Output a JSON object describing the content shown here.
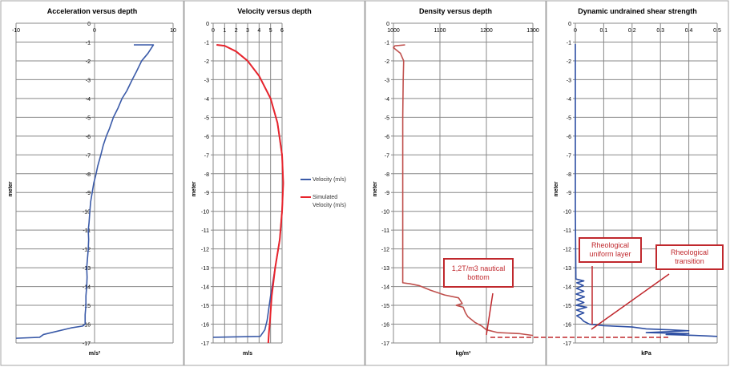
{
  "chart_data": [
    {
      "type": "line",
      "title": "Acceleration versus depth",
      "xlabel": "m/s²",
      "ylabel": "meter",
      "xlim": [
        -10,
        10
      ],
      "ylim": [
        -17,
        0
      ],
      "xticks": [
        -10,
        0,
        10
      ],
      "grid": true,
      "series": [
        {
          "color": "#3a5aa8",
          "points": [
            [
              5,
              -1.15
            ],
            [
              7.5,
              -1.15
            ],
            [
              6.8,
              -1.6
            ],
            [
              6,
              -2
            ],
            [
              5.3,
              -2.6
            ],
            [
              4.8,
              -3
            ],
            [
              4.1,
              -3.6
            ],
            [
              3.5,
              -4
            ],
            [
              3,
              -4.5
            ],
            [
              2.4,
              -5
            ],
            [
              1.9,
              -5.6
            ],
            [
              1.5,
              -6
            ],
            [
              1.1,
              -6.5
            ],
            [
              0.8,
              -7
            ],
            [
              0.4,
              -7.6
            ],
            [
              0.2,
              -8
            ],
            [
              -0.1,
              -8.5
            ],
            [
              -0.3,
              -9
            ],
            [
              -0.5,
              -9.5
            ],
            [
              -0.6,
              -10
            ],
            [
              -0.7,
              -10.6
            ],
            [
              -0.8,
              -11
            ],
            [
              -0.75,
              -11.5
            ],
            [
              -0.8,
              -12
            ],
            [
              -0.9,
              -12.5
            ],
            [
              -1,
              -13
            ],
            [
              -0.95,
              -13.5
            ],
            [
              -1,
              -14
            ],
            [
              -1.1,
              -14.5
            ],
            [
              -1.1,
              -15
            ],
            [
              -1.2,
              -15.5
            ],
            [
              -1.2,
              -16
            ],
            [
              -1.5,
              -16.1
            ],
            [
              -3,
              -16.2
            ],
            [
              -5,
              -16.4
            ],
            [
              -6.5,
              -16.55
            ],
            [
              -7,
              -16.7
            ],
            [
              -10,
              -16.75
            ]
          ]
        }
      ]
    },
    {
      "type": "line",
      "title": "Velocity versus depth",
      "xlabel": "m/s",
      "ylabel": "meter",
      "xlim": [
        0,
        6
      ],
      "ylim": [
        -17,
        0
      ],
      "xticks": [
        0,
        1,
        2,
        3,
        4,
        5,
        6
      ],
      "grid": true,
      "legend": "right",
      "series": [
        {
          "name": "Velocity (m/s)",
          "color": "#3a5aa8",
          "points": [
            [
              0.3,
              -1.15
            ],
            [
              1,
              -1.2
            ],
            [
              2,
              -1.5
            ],
            [
              3,
              -2
            ],
            [
              4,
              -2.8
            ],
            [
              5,
              -4
            ],
            [
              5.6,
              -5.3
            ],
            [
              6,
              -7
            ],
            [
              6.1,
              -8.5
            ],
            [
              6,
              -10
            ],
            [
              5.8,
              -11.5
            ],
            [
              5.4,
              -13
            ],
            [
              5,
              -14.5
            ],
            [
              4.7,
              -15.8
            ],
            [
              4.5,
              -16.3
            ],
            [
              4.1,
              -16.65
            ],
            [
              0,
              -16.7
            ]
          ]
        },
        {
          "name": "Simulated Velocity (m/s)",
          "color": "#e8242c",
          "points": [
            [
              0.3,
              -1.15
            ],
            [
              1,
              -1.2
            ],
            [
              2,
              -1.5
            ],
            [
              3,
              -2
            ],
            [
              4,
              -2.8
            ],
            [
              5,
              -4
            ],
            [
              5.6,
              -5.3
            ],
            [
              6,
              -7
            ],
            [
              6.1,
              -8.5
            ],
            [
              6,
              -10
            ],
            [
              5.8,
              -11.5
            ],
            [
              5.4,
              -13
            ],
            [
              5.1,
              -14.5
            ],
            [
              4.95,
              -15.8
            ],
            [
              4.85,
              -16.5
            ],
            [
              4.8,
              -17
            ]
          ]
        }
      ]
    },
    {
      "type": "line",
      "title": "Density versus depth",
      "xlabel": "kg/m³",
      "ylabel": "meter",
      "xlim": [
        1000,
        1300
      ],
      "ylim": [
        -17,
        0
      ],
      "xticks": [
        1000,
        1100,
        1200,
        1300
      ],
      "grid": true,
      "series": [
        {
          "color": "#c0504d",
          "points": [
            [
              1025,
              -1.15
            ],
            [
              1003,
              -1.2
            ],
            [
              1000,
              -1.3
            ],
            [
              1015,
              -1.6
            ],
            [
              1022,
              -2
            ],
            [
              1021,
              -3
            ],
            [
              1020,
              -5
            ],
            [
              1020,
              -8
            ],
            [
              1020,
              -11
            ],
            [
              1020,
              -13.8
            ],
            [
              1035,
              -13.85
            ],
            [
              1055,
              -13.95
            ],
            [
              1080,
              -14.2
            ],
            [
              1110,
              -14.45
            ],
            [
              1140,
              -14.6
            ],
            [
              1148,
              -14.9
            ],
            [
              1135,
              -15
            ],
            [
              1150,
              -15.1
            ],
            [
              1155,
              -15.4
            ],
            [
              1160,
              -15.6
            ],
            [
              1175,
              -15.9
            ],
            [
              1190,
              -16.1
            ],
            [
              1200,
              -16.3
            ],
            [
              1225,
              -16.45
            ],
            [
              1270,
              -16.5
            ],
            [
              1300,
              -16.6
            ]
          ]
        }
      ]
    },
    {
      "type": "line",
      "title": "Dynamic undrained shear strength",
      "xlabel": "kPa",
      "ylabel": "meter",
      "xlim": [
        0,
        0.5
      ],
      "ylim": [
        -17,
        0
      ],
      "xticks": [
        0,
        0.1,
        0.2,
        0.3,
        0.4,
        0.5
      ],
      "grid": true,
      "series": [
        {
          "color": "#2e4fa3",
          "points": [
            [
              0,
              -1.1
            ],
            [
              0,
              -5
            ],
            [
              0,
              -10
            ],
            [
              0.002,
              -13.6
            ],
            [
              0.03,
              -13.7
            ],
            [
              0.005,
              -13.8
            ],
            [
              0.028,
              -13.95
            ],
            [
              0.004,
              -14.1
            ],
            [
              0.03,
              -14.25
            ],
            [
              0.003,
              -14.4
            ],
            [
              0.032,
              -14.55
            ],
            [
              0.004,
              -14.7
            ],
            [
              0.03,
              -14.85
            ],
            [
              0.003,
              -15
            ],
            [
              0.04,
              -15.1
            ],
            [
              0.004,
              -15.25
            ],
            [
              0.03,
              -15.4
            ],
            [
              0.005,
              -15.55
            ],
            [
              0.02,
              -15.7
            ],
            [
              0.03,
              -15.85
            ],
            [
              0.05,
              -16
            ],
            [
              0.1,
              -16.08
            ],
            [
              0.2,
              -16.15
            ],
            [
              0.25,
              -16.25
            ],
            [
              0.33,
              -16.3
            ],
            [
              0.4,
              -16.35
            ],
            [
              0.25,
              -16.45
            ],
            [
              0.4,
              -16.5
            ],
            [
              0.32,
              -16.55
            ],
            [
              0.42,
              -16.6
            ],
            [
              0.5,
              -16.65
            ]
          ]
        }
      ]
    }
  ],
  "annotations": {
    "nautical_bottom": "1,2T/m3 nautical bottom",
    "uniform_layer": "Rheological uniform layer",
    "transition": "Rheological transition"
  }
}
